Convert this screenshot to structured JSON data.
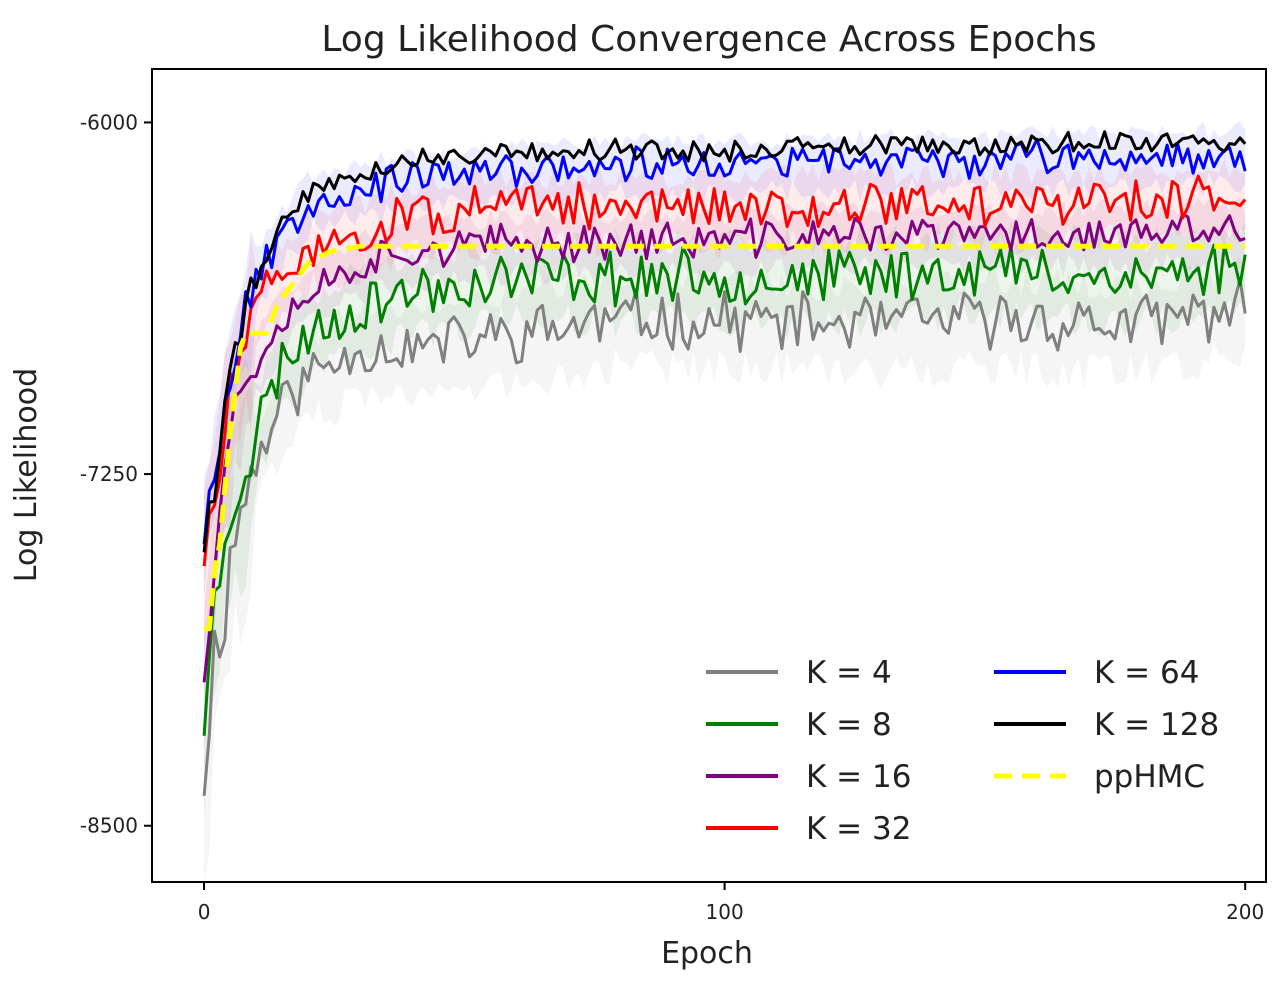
{
  "chart_data": {
    "type": "line",
    "title": "Log Likelihood Convergence Across Epochs",
    "xlabel": "Epoch",
    "ylabel": "Log Likelihood",
    "xlim": [
      -10,
      204
    ],
    "ylim": [
      -8700,
      -5810
    ],
    "xticks": [
      0,
      100,
      200
    ],
    "xtick_labels": [
      "0",
      "100",
      "200"
    ],
    "yticks": [
      -6000,
      -7250,
      -8500
    ],
    "ytick_labels": [
      "-6000",
      "-7250",
      "-8500"
    ],
    "grid": false,
    "legend": {
      "placement": "lower-right",
      "columns": 2
    },
    "series": [
      {
        "name": "K = 4",
        "color": "#808080",
        "style": "solid",
        "band": true,
        "knots": [
          [
            0,
            -8300
          ],
          [
            2,
            -7900
          ],
          [
            4,
            -7700
          ],
          [
            6,
            -7450
          ],
          [
            10,
            -7200
          ],
          [
            15,
            -7000
          ],
          [
            20,
            -6900
          ],
          [
            30,
            -6800
          ],
          [
            40,
            -6800
          ],
          [
            60,
            -6750
          ],
          [
            80,
            -6700
          ],
          [
            100,
            -6700
          ],
          [
            120,
            -6720
          ],
          [
            150,
            -6700
          ],
          [
            180,
            -6720
          ],
          [
            200,
            -6650
          ]
        ],
        "noise": 90,
        "seed": 11
      },
      {
        "name": "K = 8",
        "color": "#008000",
        "style": "solid",
        "band": true,
        "knots": [
          [
            0,
            -8100
          ],
          [
            2,
            -7750
          ],
          [
            4,
            -7450
          ],
          [
            6,
            -7300
          ],
          [
            10,
            -7100
          ],
          [
            15,
            -6850
          ],
          [
            20,
            -6750
          ],
          [
            30,
            -6650
          ],
          [
            40,
            -6600
          ],
          [
            60,
            -6550
          ],
          [
            80,
            -6550
          ],
          [
            100,
            -6550
          ],
          [
            120,
            -6550
          ],
          [
            150,
            -6520
          ],
          [
            180,
            -6550
          ],
          [
            200,
            -6500
          ]
        ],
        "noise": 85,
        "seed": 23
      },
      {
        "name": "K = 16",
        "color": "#800080",
        "style": "solid",
        "band": true,
        "knots": [
          [
            0,
            -7950
          ],
          [
            2,
            -7500
          ],
          [
            4,
            -7200
          ],
          [
            6,
            -7000
          ],
          [
            10,
            -6850
          ],
          [
            15,
            -6700
          ],
          [
            20,
            -6600
          ],
          [
            30,
            -6500
          ],
          [
            40,
            -6450
          ],
          [
            60,
            -6430
          ],
          [
            80,
            -6420
          ],
          [
            100,
            -6420
          ],
          [
            120,
            -6400
          ],
          [
            150,
            -6400
          ],
          [
            180,
            -6400
          ],
          [
            200,
            -6380
          ]
        ],
        "noise": 60,
        "seed": 37
      },
      {
        "name": "K = 32",
        "color": "#ff0000",
        "style": "solid",
        "band": true,
        "knots": [
          [
            0,
            -7550
          ],
          [
            2,
            -7350
          ],
          [
            4,
            -7100
          ],
          [
            6,
            -6900
          ],
          [
            10,
            -6650
          ],
          [
            15,
            -6550
          ],
          [
            20,
            -6450
          ],
          [
            30,
            -6400
          ],
          [
            40,
            -6330
          ],
          [
            60,
            -6300
          ],
          [
            80,
            -6300
          ],
          [
            100,
            -6300
          ],
          [
            120,
            -6290
          ],
          [
            150,
            -6290
          ],
          [
            180,
            -6280
          ],
          [
            200,
            -6270
          ]
        ],
        "noise": 70,
        "seed": 51
      },
      {
        "name": "K = 64",
        "color": "#0000ff",
        "style": "solid",
        "band": true,
        "knots": [
          [
            0,
            -7450
          ],
          [
            2,
            -7200
          ],
          [
            4,
            -7000
          ],
          [
            6,
            -6800
          ],
          [
            10,
            -6550
          ],
          [
            15,
            -6400
          ],
          [
            20,
            -6280
          ],
          [
            30,
            -6230
          ],
          [
            40,
            -6200
          ],
          [
            60,
            -6170
          ],
          [
            80,
            -6150
          ],
          [
            100,
            -6150
          ],
          [
            120,
            -6140
          ],
          [
            150,
            -6130
          ],
          [
            180,
            -6120
          ],
          [
            200,
            -6110
          ]
        ],
        "noise": 55,
        "seed": 67
      },
      {
        "name": "K = 128",
        "color": "#000000",
        "style": "solid",
        "band": false,
        "knots": [
          [
            0,
            -7500
          ],
          [
            2,
            -7300
          ],
          [
            4,
            -7000
          ],
          [
            6,
            -6800
          ],
          [
            10,
            -6550
          ],
          [
            15,
            -6350
          ],
          [
            20,
            -6250
          ],
          [
            30,
            -6180
          ],
          [
            40,
            -6130
          ],
          [
            60,
            -6100
          ],
          [
            80,
            -6100
          ],
          [
            100,
            -6100
          ],
          [
            120,
            -6090
          ],
          [
            150,
            -6080
          ],
          [
            180,
            -6070
          ],
          [
            200,
            -6060
          ]
        ],
        "noise": 35,
        "seed": 79
      },
      {
        "name": "ppHMC",
        "color": "#ffff00",
        "style": "dashed",
        "band": false,
        "points": [
          [
            0,
            -7800
          ],
          [
            1,
            -7800
          ],
          [
            2,
            -7600
          ],
          [
            3,
            -7500
          ],
          [
            4,
            -7300
          ],
          [
            5,
            -7100
          ],
          [
            6,
            -6950
          ],
          [
            7,
            -6800
          ],
          [
            8,
            -6750
          ],
          [
            12,
            -6750
          ],
          [
            14,
            -6650
          ],
          [
            16,
            -6600
          ],
          [
            20,
            -6500
          ],
          [
            24,
            -6460
          ],
          [
            30,
            -6440
          ],
          [
            50,
            -6440
          ],
          [
            80,
            -6440
          ],
          [
            120,
            -6440
          ],
          [
            160,
            -6440
          ],
          [
            200,
            -6440
          ]
        ]
      }
    ]
  }
}
